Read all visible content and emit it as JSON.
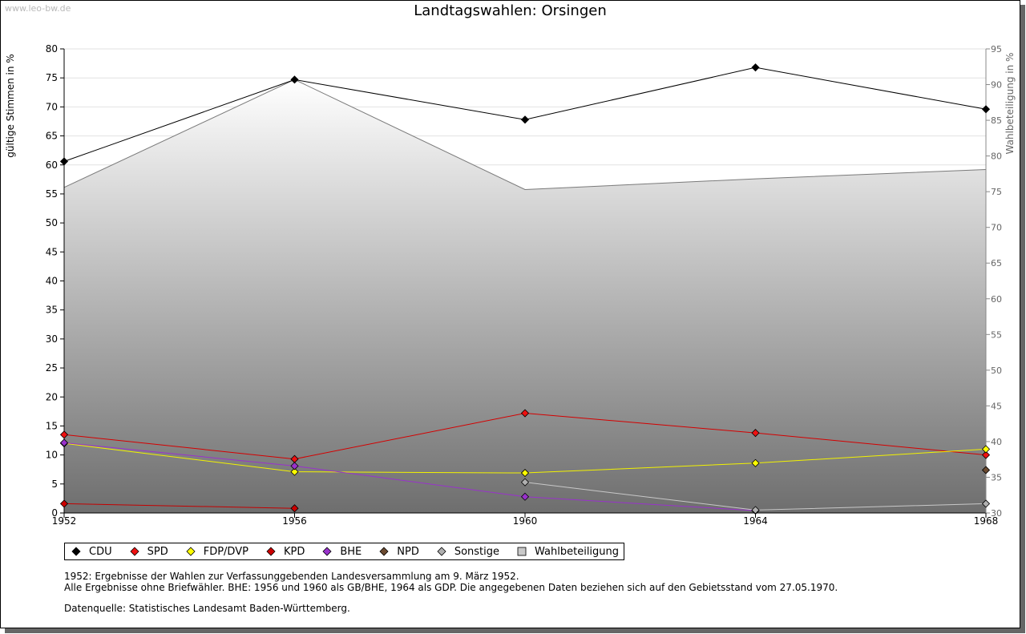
{
  "watermark": "www.leo-bw.de",
  "chart_data": {
    "type": "line",
    "title": "Landtagswahlen: Orsingen",
    "ylabel": "gültige Stimmen in %",
    "y2label": "Wahlbeteiligung in %",
    "x": [
      1952,
      1956,
      1960,
      1964,
      1968
    ],
    "ylim": [
      0,
      80
    ],
    "y2lim": [
      30,
      95
    ],
    "yticks": [
      0,
      5,
      10,
      15,
      20,
      25,
      30,
      35,
      40,
      45,
      50,
      55,
      60,
      65,
      70,
      75,
      80
    ],
    "y2ticks": [
      30,
      35,
      40,
      45,
      50,
      55,
      60,
      65,
      70,
      75,
      80,
      85,
      90,
      95
    ],
    "grid": true,
    "legend_position": "bottom",
    "series": [
      {
        "name": "CDU",
        "color": "#000000",
        "marker": "#000000",
        "values": [
          60.6,
          74.7,
          67.8,
          76.8,
          69.6
        ]
      },
      {
        "name": "SPD",
        "color": "#d40000",
        "marker": "#ee1111",
        "values": [
          13.5,
          9.3,
          17.2,
          13.8,
          10.0
        ]
      },
      {
        "name": "FDP/DVP",
        "color": "#f2f200",
        "marker": "#ffff00",
        "values": [
          12.0,
          7.1,
          6.9,
          8.6,
          11.0
        ]
      },
      {
        "name": "KPD",
        "color": "#c40000",
        "marker": "#cc0000",
        "values": [
          1.6,
          0.8,
          null,
          null,
          null
        ]
      },
      {
        "name": "BHE",
        "color": "#9932cc",
        "marker": "#9932cc",
        "values": [
          12.1,
          8.1,
          2.8,
          0.4,
          null
        ]
      },
      {
        "name": "NPD",
        "color": "#5a3a22",
        "marker": "#6b4a30",
        "values": [
          null,
          null,
          null,
          null,
          7.4
        ]
      },
      {
        "name": "Sonstige",
        "color": "#c8c8c8",
        "marker": "#b0b0b0",
        "values": [
          null,
          null,
          5.3,
          0.5,
          1.6
        ]
      }
    ],
    "turnout": {
      "name": "Wahlbeteiligung",
      "color": "#7a7a7a",
      "values": [
        75.6,
        90.7,
        75.3,
        76.8,
        78.1
      ]
    }
  },
  "notes": [
    "1952: Ergebnisse der Wahlen zur Verfassunggebenden Landesversammlung am 9. März 1952.",
    "Alle Ergebnisse ohne Briefwähler. BHE: 1956 und 1960 als GB/BHE, 1964 als GDP. Die angegebenen Daten beziehen sich auf den Gebietsstand vom 27.05.1970."
  ],
  "source": "Datenquelle: Statistisches Landesamt Baden-Württemberg."
}
